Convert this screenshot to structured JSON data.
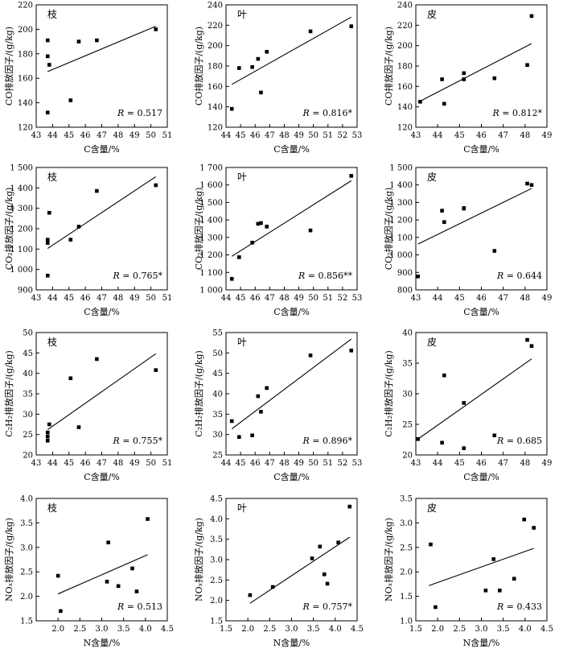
{
  "chart_data": [
    {
      "type": "scatter",
      "panel_label": "枝",
      "xlabel": "C含量/%",
      "ylabel": "CO排放因子/(g/kg)",
      "xlim": [
        43,
        51
      ],
      "ylim": [
        120,
        220
      ],
      "xticks": [
        "43",
        "44",
        "45",
        "46",
        "47",
        "48",
        "49",
        "50",
        "51"
      ],
      "yticks": [
        "120",
        "140",
        "160",
        "180",
        "200",
        "220"
      ],
      "points": [
        [
          43.7,
          191
        ],
        [
          43.7,
          178
        ],
        [
          43.8,
          171
        ],
        [
          43.7,
          132
        ],
        [
          45.1,
          142
        ],
        [
          45.6,
          190
        ],
        [
          46.7,
          191
        ],
        [
          50.3,
          200
        ]
      ],
      "fit": [
        [
          43.7,
          165.5
        ],
        [
          50.3,
          202.5
        ]
      ],
      "annotation": "R = 0.517"
    },
    {
      "type": "scatter",
      "panel_label": "叶",
      "xlabel": "C含量/%",
      "ylabel": "CO排放因子/(g/kg)",
      "xlim": [
        44,
        53
      ],
      "ylim": [
        120,
        240
      ],
      "xticks": [
        "44",
        "45",
        "46",
        "47",
        "48",
        "49",
        "50",
        "51",
        "52",
        "53"
      ],
      "yticks": [
        "120",
        "140",
        "160",
        "180",
        "200",
        "220",
        "240"
      ],
      "points": [
        [
          44.4,
          138
        ],
        [
          44.9,
          178
        ],
        [
          45.8,
          179
        ],
        [
          46.2,
          187
        ],
        [
          46.4,
          154
        ],
        [
          46.8,
          194
        ],
        [
          49.8,
          214
        ],
        [
          52.6,
          219
        ]
      ],
      "fit": [
        [
          44.4,
          162
        ],
        [
          52.6,
          228
        ]
      ],
      "annotation": "R = 0.816*"
    },
    {
      "type": "scatter",
      "panel_label": "皮",
      "xlabel": "C含量/%",
      "ylabel": "CO排放因子/(g/kg)",
      "xlim": [
        43,
        49
      ],
      "ylim": [
        120,
        240
      ],
      "xticks": [
        "43",
        "44",
        "45",
        "46",
        "47",
        "48",
        "49"
      ],
      "yticks": [
        "120",
        "140",
        "160",
        "180",
        "200",
        "220",
        "240"
      ],
      "points": [
        [
          43.2,
          145
        ],
        [
          44.2,
          167
        ],
        [
          44.3,
          143
        ],
        [
          45.2,
          173
        ],
        [
          45.2,
          167
        ],
        [
          46.6,
          168
        ],
        [
          48.1,
          181
        ],
        [
          48.3,
          229
        ]
      ],
      "fit": [
        [
          43.1,
          144.5
        ],
        [
          48.3,
          202
        ]
      ],
      "annotation": "R = 0.812*"
    },
    {
      "type": "scatter",
      "panel_label": "枝",
      "xlabel": "C含量/%",
      "ylabel": "CO₂排放因子/(g/kg)",
      "xlim": [
        43,
        51
      ],
      "ylim": [
        900,
        1500
      ],
      "xticks": [
        "43",
        "44",
        "45",
        "46",
        "47",
        "48",
        "49",
        "50",
        "51"
      ],
      "yticks": [
        "900",
        "1 000",
        "1 100",
        "1 200",
        "1 300",
        "1 400",
        "1 500"
      ],
      "points": [
        [
          43.7,
          1146
        ],
        [
          43.7,
          1130
        ],
        [
          43.8,
          1278
        ],
        [
          43.7,
          970
        ],
        [
          45.1,
          1146
        ],
        [
          45.6,
          1210
        ],
        [
          46.7,
          1385
        ],
        [
          50.3,
          1413
        ]
      ],
      "fit": [
        [
          43.7,
          1103
        ],
        [
          50.3,
          1455
        ]
      ],
      "annotation": "R = 0.765*"
    },
    {
      "type": "scatter",
      "panel_label": "叶",
      "xlabel": "C含量/%",
      "ylabel": "CO₂排放因子/(g/kg)",
      "xlim": [
        44,
        53
      ],
      "ylim": [
        1000,
        1700
      ],
      "xticks": [
        "44",
        "45",
        "46",
        "47",
        "48",
        "49",
        "50",
        "51",
        "52",
        "53"
      ],
      "yticks": [
        "1 000",
        "1 100",
        "1 200",
        "1 300",
        "1 400",
        "1 500",
        "1 600",
        "1 700"
      ],
      "points": [
        [
          44.4,
          1063
        ],
        [
          44.9,
          1187
        ],
        [
          45.8,
          1270
        ],
        [
          46.2,
          1378
        ],
        [
          46.4,
          1382
        ],
        [
          46.8,
          1362
        ],
        [
          49.8,
          1340
        ],
        [
          52.6,
          1652
        ]
      ],
      "fit": [
        [
          44.4,
          1192
        ],
        [
          52.6,
          1624
        ]
      ],
      "annotation": "R = 0.856**"
    },
    {
      "type": "scatter",
      "panel_label": "皮",
      "xlabel": "C含量/%",
      "ylabel": "CO₂排放因子/(g/kg)",
      "xlim": [
        43,
        49
      ],
      "ylim": [
        800,
        1500
      ],
      "xticks": [
        "43",
        "44",
        "45",
        "46",
        "47",
        "48",
        "49"
      ],
      "yticks": [
        "800",
        "900",
        "1 000",
        "1 100",
        "1 200",
        "1 300",
        "1 400",
        "1 500"
      ],
      "points": [
        [
          43.1,
          877
        ],
        [
          44.2,
          1253
        ],
        [
          44.3,
          1188
        ],
        [
          45.2,
          1265
        ],
        [
          45.2,
          1268
        ],
        [
          46.6,
          1023
        ],
        [
          48.1,
          1408
        ],
        [
          48.3,
          1400
        ]
      ],
      "fit": [
        [
          43.1,
          1062
        ],
        [
          48.3,
          1380
        ]
      ],
      "annotation": "R = 0.644"
    },
    {
      "type": "scatter",
      "panel_label": "枝",
      "xlabel": "C含量/%",
      "ylabel": "C₂H₂排放因子/(g/kg)",
      "xlim": [
        43,
        51
      ],
      "ylim": [
        20,
        50
      ],
      "xticks": [
        "43",
        "44",
        "45",
        "46",
        "47",
        "48",
        "49",
        "50",
        "51"
      ],
      "yticks": [
        "20",
        "25",
        "30",
        "35",
        "40",
        "45",
        "50"
      ],
      "points": [
        [
          43.7,
          25.5
        ],
        [
          43.7,
          24.5
        ],
        [
          43.8,
          27.5
        ],
        [
          43.7,
          23.5
        ],
        [
          45.1,
          38.8
        ],
        [
          45.6,
          26.8
        ],
        [
          46.7,
          43.5
        ],
        [
          50.3,
          40.8
        ]
      ],
      "fit": [
        [
          43.7,
          26.2
        ],
        [
          50.3,
          44.8
        ]
      ],
      "annotation": "R = 0.755*"
    },
    {
      "type": "scatter",
      "panel_label": "叶",
      "xlabel": "C含量/%",
      "ylabel": "C₂H₂排放因子/(g/kg)",
      "xlim": [
        44,
        53
      ],
      "ylim": [
        25,
        55
      ],
      "xticks": [
        "44",
        "45",
        "46",
        "47",
        "48",
        "49",
        "50",
        "51",
        "52",
        "53"
      ],
      "yticks": [
        "25",
        "30",
        "35",
        "40",
        "45",
        "50",
        "55"
      ],
      "points": [
        [
          44.4,
          33.3
        ],
        [
          44.9,
          29.4
        ],
        [
          45.8,
          29.8
        ],
        [
          46.2,
          39.4
        ],
        [
          46.4,
          35.6
        ],
        [
          46.8,
          41.4
        ],
        [
          49.8,
          49.4
        ],
        [
          52.6,
          50.6
        ]
      ],
      "fit": [
        [
          44.4,
          31.4
        ],
        [
          52.6,
          53.4
        ]
      ],
      "annotation": "R = 0.896*"
    },
    {
      "type": "scatter",
      "panel_label": "皮",
      "xlabel": "C含量/%",
      "ylabel": "C₂H₂排放因子/(g/kg)",
      "xlim": [
        43,
        49
      ],
      "ylim": [
        20,
        40
      ],
      "xticks": [
        "43",
        "44",
        "45",
        "46",
        "47",
        "48",
        "49"
      ],
      "yticks": [
        "20",
        "25",
        "30",
        "35",
        "40"
      ],
      "points": [
        [
          43.1,
          22.6
        ],
        [
          44.2,
          22.0
        ],
        [
          44.3,
          33.0
        ],
        [
          45.2,
          28.5
        ],
        [
          45.2,
          21.1
        ],
        [
          46.6,
          23.2
        ],
        [
          48.1,
          38.8
        ],
        [
          48.3,
          37.8
        ]
      ],
      "fit": [
        [
          43.1,
          22.6
        ],
        [
          48.3,
          35.7
        ]
      ],
      "annotation": "R = 0.685"
    },
    {
      "type": "scatter",
      "panel_label": "枝",
      "xlabel": "N含量/%",
      "ylabel": "NOₓ排放因子/(g/kg)",
      "xlim": [
        1.5,
        4.5
      ],
      "ylim": [
        1.5,
        4.0
      ],
      "xticks": [
        "2.0",
        "2.5",
        "3.0",
        "3.5",
        "4.0",
        "4.5"
      ],
      "yticks": [
        "1.5",
        "2.0",
        "2.5",
        "3.0",
        "3.5",
        "4.0"
      ],
      "points": [
        [
          2.0,
          2.42
        ],
        [
          2.06,
          1.7
        ],
        [
          3.15,
          3.1
        ],
        [
          3.12,
          2.3
        ],
        [
          3.38,
          2.21
        ],
        [
          3.7,
          2.57
        ],
        [
          3.8,
          2.1
        ],
        [
          4.05,
          3.58
        ]
      ],
      "fit": [
        [
          2.0,
          2.05
        ],
        [
          4.05,
          2.85
        ]
      ],
      "annotation": "R = 0.513"
    },
    {
      "type": "scatter",
      "panel_label": "叶",
      "xlabel": "N含量/%",
      "ylabel": "NOₓ排放因子/(g/kg)",
      "xlim": [
        1.5,
        4.5
      ],
      "ylim": [
        1.5,
        4.5
      ],
      "xticks": [
        "1.5",
        "2.0",
        "2.5",
        "3.0",
        "3.5",
        "4.0",
        "4.5"
      ],
      "yticks": [
        "1.5",
        "2.0",
        "2.5",
        "3.0",
        "3.5",
        "4.0",
        "4.5"
      ],
      "points": [
        [
          2.05,
          2.13
        ],
        [
          2.57,
          2.33
        ],
        [
          3.47,
          3.03
        ],
        [
          3.65,
          3.32
        ],
        [
          3.75,
          2.64
        ],
        [
          3.82,
          2.41
        ],
        [
          4.07,
          3.42
        ],
        [
          4.33,
          4.3
        ]
      ],
      "fit": [
        [
          2.05,
          1.93
        ],
        [
          4.33,
          3.55
        ]
      ],
      "annotation": "R = 0.757*"
    },
    {
      "type": "scatter",
      "panel_label": "皮",
      "xlabel": "N含量/%",
      "ylabel": "NOₓ排放因子/(g/kg)",
      "xlim": [
        1.5,
        4.5
      ],
      "ylim": [
        1.0,
        3.5
      ],
      "xticks": [
        "1.5",
        "2.0",
        "2.5",
        "3.0",
        "3.5",
        "4.0",
        "4.5"
      ],
      "yticks": [
        "1.0",
        "1.5",
        "2.0",
        "2.5",
        "3.0",
        "3.5"
      ],
      "points": [
        [
          1.84,
          2.56
        ],
        [
          1.95,
          1.28
        ],
        [
          3.1,
          1.62
        ],
        [
          3.28,
          2.26
        ],
        [
          3.42,
          1.62
        ],
        [
          3.75,
          1.86
        ],
        [
          3.98,
          3.07
        ],
        [
          4.2,
          2.9
        ]
      ],
      "fit": [
        [
          1.8,
          1.72
        ],
        [
          4.2,
          2.48
        ]
      ],
      "annotation": "R = 0.433"
    }
  ]
}
